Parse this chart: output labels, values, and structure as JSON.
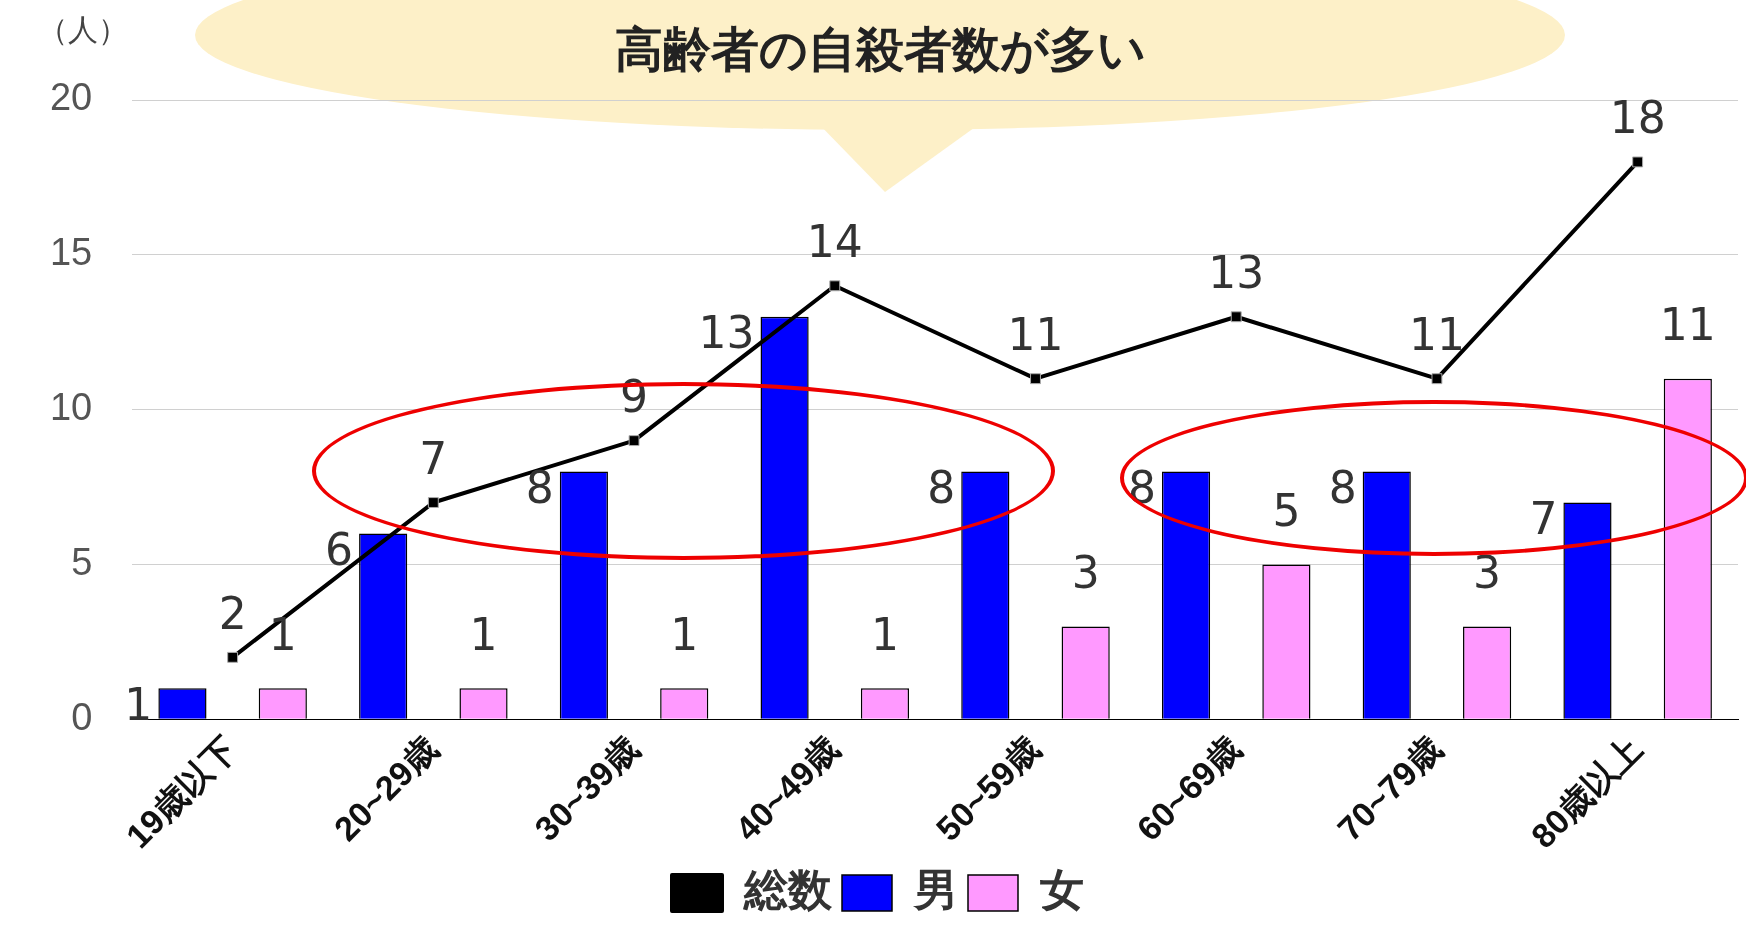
{
  "chart_data": {
    "type": "bar",
    "title": "高齢者の自殺者数が多い",
    "ylabel": "（人）",
    "categories": [
      "19歳以下",
      "20~29歳",
      "30~39歳",
      "40~49歳",
      "50~59歳",
      "60~69歳",
      "70~79歳",
      "80歳以上"
    ],
    "series": [
      {
        "name": "男",
        "color": "#0000ff",
        "values": [
          1,
          6,
          8,
          13,
          8,
          8,
          8,
          7
        ]
      },
      {
        "name": "女",
        "color": "#ff99ff",
        "values": [
          1,
          1,
          1,
          1,
          3,
          5,
          3,
          11
        ]
      },
      {
        "name": "総数",
        "type": "line",
        "color": "#000000",
        "marker": "square",
        "values": [
          2,
          7,
          9,
          14,
          11,
          13,
          11,
          18
        ]
      }
    ],
    "ylim": [
      0,
      20
    ],
    "yticks": [
      0,
      5,
      10,
      15,
      20
    ],
    "grid": "y",
    "legend": "bottom",
    "data_labels": true
  }
}
